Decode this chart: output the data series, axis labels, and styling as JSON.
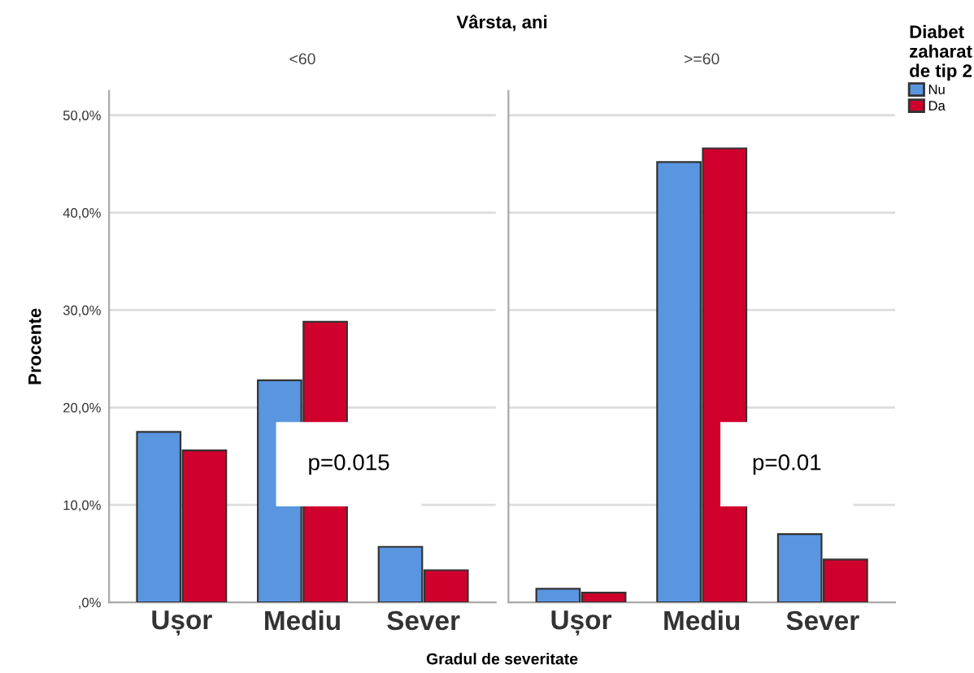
{
  "chart_data": [
    {
      "type": "bar",
      "title": "Vârsta, ani",
      "subtitle": "<60",
      "xlabel": "Gradul de severitate",
      "ylabel": "Procente",
      "legend_title": "Diabet\nzaharat\nde tip 2",
      "legend": "right",
      "categories": [
        "Ușor",
        "Mediu",
        "Sever"
      ],
      "series": [
        {
          "name": "Nu",
          "color": "#5a96e0",
          "values": [
            17.5,
            22.8,
            5.7
          ]
        },
        {
          "name": "Da",
          "color": "#d0002d",
          "values": [
            15.6,
            28.8,
            3.3
          ]
        }
      ],
      "ylim": [
        0,
        52.5
      ],
      "yticks": [
        {
          "value": 0,
          "label": ",0%"
        },
        {
          "value": 10,
          "label": "10,0%"
        },
        {
          "value": 20,
          "label": "20,0%"
        },
        {
          "value": 30,
          "label": "30,0%"
        },
        {
          "value": 40,
          "label": "40,0%"
        },
        {
          "value": 50,
          "label": "50,0%"
        }
      ],
      "grid": "y",
      "annotations": [
        "p=0.015"
      ]
    },
    {
      "type": "bar",
      "subtitle": ">=60",
      "categories": [
        "Ușor",
        "Mediu",
        "Sever"
      ],
      "series": [
        {
          "color": "#5a96e0",
          "values": [
            1.4,
            45.2,
            7.0
          ]
        },
        {
          "color": "#d0002d",
          "values": [
            1.0,
            46.6,
            4.4
          ]
        }
      ],
      "ylim": [
        0,
        52.5
      ],
      "yticks": [
        {
          "value": 0,
          "label": null
        },
        {
          "value": 10,
          "label": null
        },
        {
          "value": 20,
          "label": null
        },
        {
          "value": 30,
          "label": null
        },
        {
          "value": 40,
          "label": null
        },
        {
          "value": 50,
          "label": null
        }
      ],
      "grid": "y",
      "tick_labels": "x",
      "annotations": [
        "p=0.01"
      ]
    }
  ]
}
